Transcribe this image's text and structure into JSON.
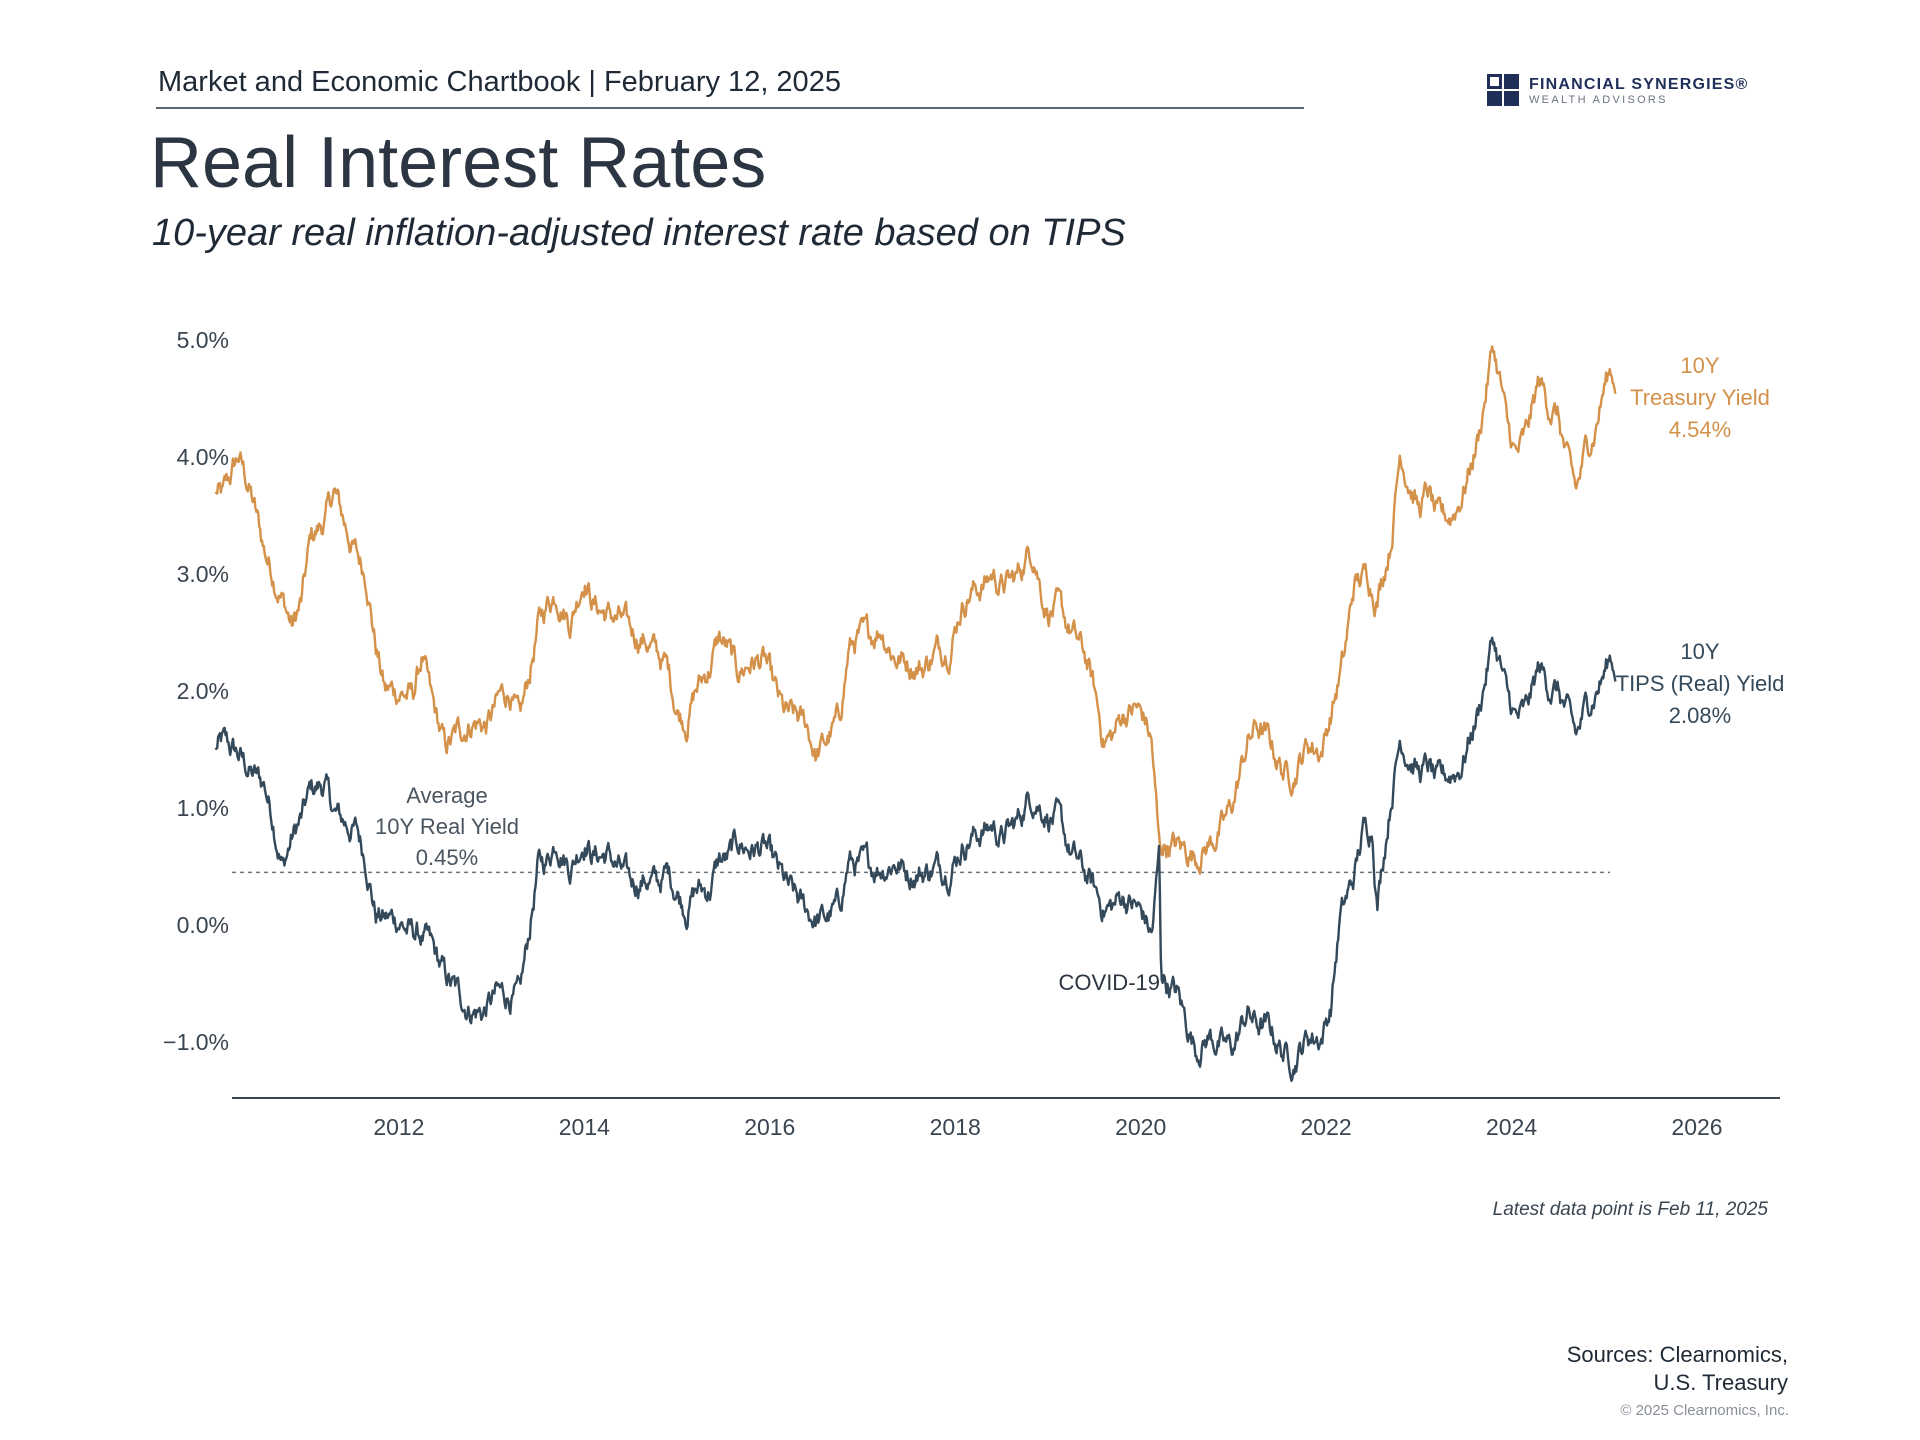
{
  "header": {
    "chartbook_label": "Market and Economic Chartbook | February 12, 2025"
  },
  "logo": {
    "name": "FINANCIAL SYNERGIES®",
    "sub": "WEALTH ADVISORS"
  },
  "title": "Real Interest Rates",
  "subtitle": "10-year real inflation-adjusted interest rate based on TIPS",
  "chart_data": {
    "type": "line",
    "title": "Real Interest Rates",
    "xlabel": "",
    "ylabel": "",
    "xlim": [
      2010.2,
      2027.0
    ],
    "ylim": [
      -1.5,
      5.2
    ],
    "x_ticks": [
      2012,
      2014,
      2016,
      2018,
      2020,
      2022,
      2024,
      2026
    ],
    "x_tick_labels": [
      "2012",
      "2014",
      "2016",
      "2018",
      "2020",
      "2022",
      "2024",
      "2026"
    ],
    "y_ticks": [
      -1,
      0,
      1,
      2,
      3,
      4,
      5
    ],
    "y_tick_labels": [
      "−1.0%",
      "0.0%",
      "1.0%",
      "2.0%",
      "3.0%",
      "4.0%",
      "5.0%"
    ],
    "grid": false,
    "series": [
      {
        "name": "10Y Treasury Yield",
        "color": "#d4914a",
        "label_lines": [
          "10Y",
          "Treasury Yield",
          "4.54%"
        ],
        "points": [
          [
            2010.02,
            3.7
          ],
          [
            2010.1,
            3.65
          ],
          [
            2010.27,
            4.0
          ],
          [
            2010.4,
            3.7
          ],
          [
            2010.55,
            3.2
          ],
          [
            2010.7,
            2.9
          ],
          [
            2010.85,
            2.55
          ],
          [
            2010.95,
            2.75
          ],
          [
            2011.05,
            3.3
          ],
          [
            2011.2,
            3.45
          ],
          [
            2011.3,
            3.7
          ],
          [
            2011.45,
            3.35
          ],
          [
            2011.55,
            3.15
          ],
          [
            2011.65,
            3.0
          ],
          [
            2011.75,
            2.4
          ],
          [
            2011.85,
            2.0
          ],
          [
            2012.0,
            2.0
          ],
          [
            2012.15,
            1.95
          ],
          [
            2012.25,
            2.3
          ],
          [
            2012.35,
            1.9
          ],
          [
            2012.5,
            1.5
          ],
          [
            2012.65,
            1.65
          ],
          [
            2012.8,
            1.75
          ],
          [
            2012.95,
            1.7
          ],
          [
            2013.1,
            1.95
          ],
          [
            2013.2,
            2.0
          ],
          [
            2013.3,
            1.7
          ],
          [
            2013.4,
            2.1
          ],
          [
            2013.5,
            2.55
          ],
          [
            2013.6,
            2.75
          ],
          [
            2013.7,
            2.85
          ],
          [
            2013.85,
            2.6
          ],
          [
            2014.0,
            3.0
          ],
          [
            2014.1,
            2.75
          ],
          [
            2014.25,
            2.65
          ],
          [
            2014.4,
            2.6
          ],
          [
            2014.5,
            2.5
          ],
          [
            2014.65,
            2.45
          ],
          [
            2014.8,
            2.3
          ],
          [
            2014.9,
            2.2
          ],
          [
            2015.0,
            1.85
          ],
          [
            2015.1,
            1.75
          ],
          [
            2015.2,
            2.0
          ],
          [
            2015.35,
            2.2
          ],
          [
            2015.45,
            2.45
          ],
          [
            2015.55,
            2.35
          ],
          [
            2015.65,
            2.15
          ],
          [
            2015.8,
            2.25
          ],
          [
            2015.95,
            2.25
          ],
          [
            2016.05,
            2.0
          ],
          [
            2016.15,
            1.8
          ],
          [
            2016.3,
            1.75
          ],
          [
            2016.4,
            1.7
          ],
          [
            2016.5,
            1.45
          ],
          [
            2016.6,
            1.55
          ],
          [
            2016.75,
            1.75
          ],
          [
            2016.85,
            2.35
          ],
          [
            2016.95,
            2.45
          ],
          [
            2017.05,
            2.45
          ],
          [
            2017.2,
            2.55
          ],
          [
            2017.35,
            2.3
          ],
          [
            2017.5,
            2.25
          ],
          [
            2017.65,
            2.2
          ],
          [
            2017.8,
            2.35
          ],
          [
            2017.95,
            2.4
          ],
          [
            2018.05,
            2.7
          ],
          [
            2018.15,
            2.85
          ],
          [
            2018.3,
            2.9
          ],
          [
            2018.4,
            3.0
          ],
          [
            2018.5,
            2.9
          ],
          [
            2018.65,
            2.95
          ],
          [
            2018.8,
            3.2
          ],
          [
            2018.85,
            3.2
          ],
          [
            2018.95,
            2.8
          ],
          [
            2019.0,
            2.7
          ],
          [
            2019.1,
            2.7
          ],
          [
            2019.25,
            2.5
          ],
          [
            2019.4,
            2.3
          ],
          [
            2019.5,
            2.0
          ],
          [
            2019.6,
            1.6
          ],
          [
            2019.7,
            1.6
          ],
          [
            2019.8,
            1.8
          ],
          [
            2019.95,
            1.85
          ],
          [
            2020.05,
            1.75
          ],
          [
            2020.12,
            1.55
          ],
          [
            2020.2,
            0.65
          ],
          [
            2020.3,
            0.7
          ],
          [
            2020.45,
            0.65
          ],
          [
            2020.6,
            0.6
          ],
          [
            2020.75,
            0.7
          ],
          [
            2020.9,
            0.85
          ],
          [
            2021.0,
            1.05
          ],
          [
            2021.15,
            1.55
          ],
          [
            2021.25,
            1.7
          ],
          [
            2021.4,
            1.55
          ],
          [
            2021.55,
            1.3
          ],
          [
            2021.65,
            1.3
          ],
          [
            2021.8,
            1.55
          ],
          [
            2021.95,
            1.5
          ],
          [
            2022.05,
            1.8
          ],
          [
            2022.2,
            2.3
          ],
          [
            2022.3,
            2.9
          ],
          [
            2022.45,
            3.0
          ],
          [
            2022.55,
            2.8
          ],
          [
            2022.7,
            3.3
          ],
          [
            2022.8,
            4.05
          ],
          [
            2022.9,
            3.8
          ],
          [
            2023.0,
            3.55
          ],
          [
            2023.1,
            3.7
          ],
          [
            2023.2,
            3.45
          ],
          [
            2023.35,
            3.5
          ],
          [
            2023.45,
            3.65
          ],
          [
            2023.55,
            3.9
          ],
          [
            2023.65,
            4.2
          ],
          [
            2023.8,
            4.95
          ],
          [
            2023.9,
            4.55
          ],
          [
            2023.95,
            4.25
          ],
          [
            2024.05,
            4.0
          ],
          [
            2024.15,
            4.15
          ],
          [
            2024.3,
            4.65
          ],
          [
            2024.4,
            4.45
          ],
          [
            2024.5,
            4.35
          ],
          [
            2024.6,
            3.95
          ],
          [
            2024.7,
            3.7
          ],
          [
            2024.8,
            4.05
          ],
          [
            2024.9,
            4.25
          ],
          [
            2025.0,
            4.6
          ],
          [
            2025.07,
            4.75
          ],
          [
            2025.12,
            4.54
          ]
        ]
      },
      {
        "name": "10Y TIPS (Real) Yield",
        "color": "#34495a",
        "label_lines": [
          "10Y",
          "TIPS (Real) Yield",
          "2.08%"
        ],
        "points": [
          [
            2010.02,
            1.5
          ],
          [
            2010.1,
            1.55
          ],
          [
            2010.27,
            1.45
          ],
          [
            2010.4,
            1.3
          ],
          [
            2010.55,
            1.2
          ],
          [
            2010.65,
            0.9
          ],
          [
            2010.75,
            0.5
          ],
          [
            2010.85,
            0.75
          ],
          [
            2010.95,
            0.9
          ],
          [
            2011.05,
            1.15
          ],
          [
            2011.2,
            1.2
          ],
          [
            2011.3,
            0.95
          ],
          [
            2011.45,
            0.85
          ],
          [
            2011.55,
            0.8
          ],
          [
            2011.65,
            0.55
          ],
          [
            2011.75,
            0.1
          ],
          [
            2011.85,
            0.05
          ],
          [
            2012.0,
            0.05
          ],
          [
            2012.1,
            -0.05
          ],
          [
            2012.25,
            -0.1
          ],
          [
            2012.35,
            -0.2
          ],
          [
            2012.5,
            -0.45
          ],
          [
            2012.65,
            -0.6
          ],
          [
            2012.75,
            -0.7
          ],
          [
            2012.9,
            -0.75
          ],
          [
            2013.05,
            -0.6
          ],
          [
            2013.2,
            -0.6
          ],
          [
            2013.3,
            -0.65
          ],
          [
            2013.4,
            -0.1
          ],
          [
            2013.5,
            0.5
          ],
          [
            2013.6,
            0.55
          ],
          [
            2013.7,
            0.75
          ],
          [
            2013.85,
            0.5
          ],
          [
            2014.0,
            0.75
          ],
          [
            2014.1,
            0.6
          ],
          [
            2014.25,
            0.6
          ],
          [
            2014.4,
            0.45
          ],
          [
            2014.5,
            0.35
          ],
          [
            2014.65,
            0.4
          ],
          [
            2014.8,
            0.35
          ],
          [
            2014.9,
            0.45
          ],
          [
            2015.0,
            0.3
          ],
          [
            2015.1,
            0.15
          ],
          [
            2015.2,
            0.3
          ],
          [
            2015.35,
            0.3
          ],
          [
            2015.45,
            0.55
          ],
          [
            2015.55,
            0.55
          ],
          [
            2015.65,
            0.7
          ],
          [
            2015.8,
            0.65
          ],
          [
            2015.95,
            0.65
          ],
          [
            2016.05,
            0.5
          ],
          [
            2016.2,
            0.3
          ],
          [
            2016.35,
            0.15
          ],
          [
            2016.5,
            0.05
          ],
          [
            2016.6,
            0.05
          ],
          [
            2016.75,
            0.15
          ],
          [
            2016.85,
            0.55
          ],
          [
            2016.95,
            0.5
          ],
          [
            2017.05,
            0.5
          ],
          [
            2017.2,
            0.5
          ],
          [
            2017.35,
            0.55
          ],
          [
            2017.5,
            0.45
          ],
          [
            2017.65,
            0.45
          ],
          [
            2017.8,
            0.5
          ],
          [
            2017.95,
            0.5
          ],
          [
            2018.05,
            0.65
          ],
          [
            2018.15,
            0.75
          ],
          [
            2018.3,
            0.8
          ],
          [
            2018.4,
            0.85
          ],
          [
            2018.5,
            0.75
          ],
          [
            2018.65,
            0.85
          ],
          [
            2018.8,
            1.1
          ],
          [
            2018.85,
            1.1
          ],
          [
            2018.95,
            1.0
          ],
          [
            2019.0,
            0.95
          ],
          [
            2019.1,
            0.9
          ],
          [
            2019.25,
            0.6
          ],
          [
            2019.35,
            0.5
          ],
          [
            2019.5,
            0.3
          ],
          [
            2019.6,
            0.15
          ],
          [
            2019.7,
            0.15
          ],
          [
            2019.8,
            0.25
          ],
          [
            2019.95,
            0.15
          ],
          [
            2020.05,
            0.05
          ],
          [
            2020.12,
            -0.1
          ],
          [
            2020.2,
            0.6
          ],
          [
            2020.22,
            -0.4
          ],
          [
            2020.3,
            -0.5
          ],
          [
            2020.4,
            -0.6
          ],
          [
            2020.5,
            -0.85
          ],
          [
            2020.6,
            -1.05
          ],
          [
            2020.75,
            -0.95
          ],
          [
            2020.9,
            -1.05
          ],
          [
            2021.0,
            -1.05
          ],
          [
            2021.15,
            -0.75
          ],
          [
            2021.25,
            -0.85
          ],
          [
            2021.4,
            -0.9
          ],
          [
            2021.55,
            -1.1
          ],
          [
            2021.65,
            -1.15
          ],
          [
            2021.8,
            -0.95
          ],
          [
            2021.95,
            -0.95
          ],
          [
            2022.05,
            -0.7
          ],
          [
            2022.15,
            0.05
          ],
          [
            2022.3,
            0.4
          ],
          [
            2022.4,
            0.8
          ],
          [
            2022.5,
            0.85
          ],
          [
            2022.55,
            0.2
          ],
          [
            2022.7,
            1.1
          ],
          [
            2022.8,
            1.6
          ],
          [
            2022.9,
            1.45
          ],
          [
            2023.0,
            1.3
          ],
          [
            2023.1,
            1.35
          ],
          [
            2023.2,
            1.2
          ],
          [
            2023.35,
            1.3
          ],
          [
            2023.45,
            1.35
          ],
          [
            2023.55,
            1.6
          ],
          [
            2023.65,
            1.85
          ],
          [
            2023.8,
            2.45
          ],
          [
            2023.9,
            2.15
          ],
          [
            2023.95,
            1.95
          ],
          [
            2024.05,
            1.75
          ],
          [
            2024.15,
            1.8
          ],
          [
            2024.3,
            2.2
          ],
          [
            2024.4,
            2.05
          ],
          [
            2024.5,
            2.0
          ],
          [
            2024.6,
            1.8
          ],
          [
            2024.7,
            1.6
          ],
          [
            2024.8,
            1.85
          ],
          [
            2024.9,
            2.0
          ],
          [
            2025.0,
            2.15
          ],
          [
            2025.07,
            2.3
          ],
          [
            2025.12,
            2.08
          ]
        ]
      }
    ],
    "average_line": {
      "value": 0.45,
      "label_lines": [
        "Average",
        "10Y Real Yield",
        "0.45%"
      ]
    },
    "annotations": [
      {
        "text": "COVID-19",
        "x": 2020.2,
        "y": -0.5
      }
    ],
    "footnote": "Latest data point is Feb 11, 2025"
  },
  "sources": {
    "line1": "Sources: Clearnomics,",
    "line2": "U.S. Treasury",
    "copyright": "© 2025 Clearnomics, Inc."
  }
}
